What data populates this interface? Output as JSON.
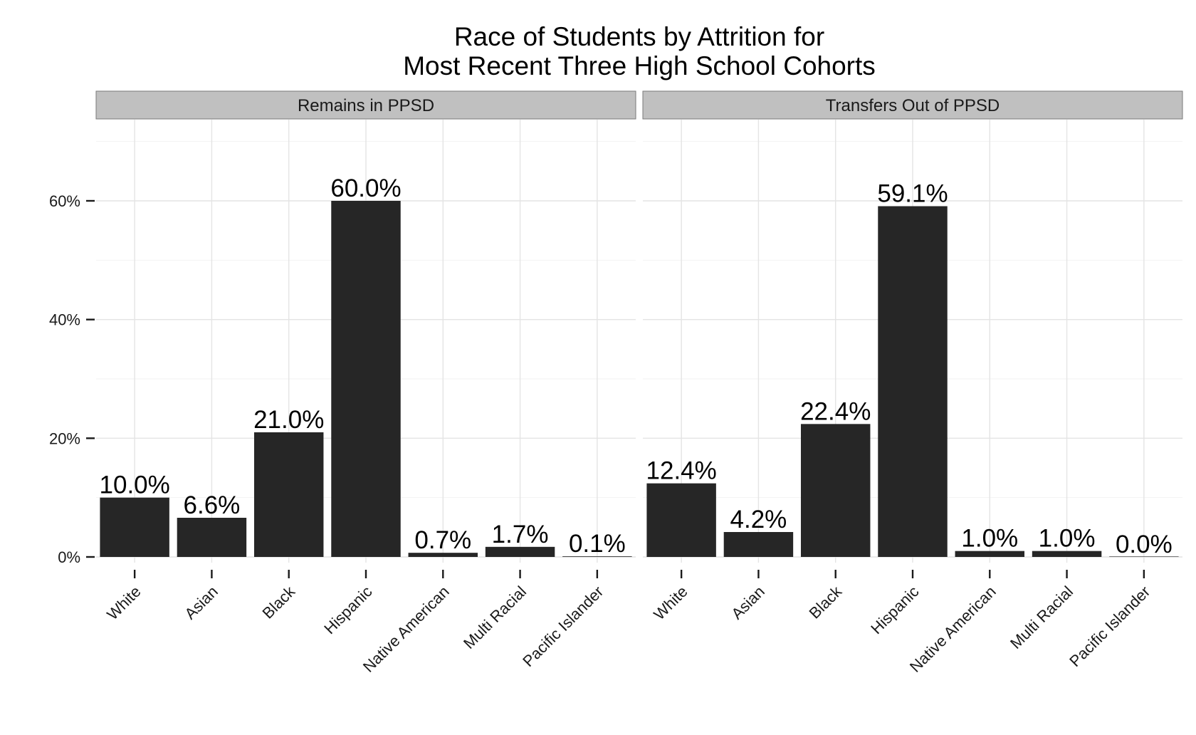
{
  "chart_data": {
    "type": "bar",
    "title_lines": [
      "Race of Students by Attrition for",
      "Most Recent Three High School Cohorts"
    ],
    "xlabel": "",
    "ylabel": "",
    "ylim": [
      0,
      0.72
    ],
    "y_ticks": [
      0,
      0.2,
      0.4,
      0.6
    ],
    "y_tick_labels": [
      "0%",
      "20%",
      "40%",
      "60%"
    ],
    "grid": true,
    "categories": [
      "White",
      "Asian",
      "Black",
      "Hispanic",
      "Native American",
      "Multi Racial",
      "Pacific Islander"
    ],
    "bar_color": "#262626",
    "strip_color": "#c0c0c0",
    "panels": [
      {
        "name": "Remains in PPSD",
        "values": [
          0.1,
          0.066,
          0.21,
          0.6,
          0.007,
          0.017,
          0.001
        ],
        "labels": [
          "10.0%",
          "6.6%",
          "21.0%",
          "60.0%",
          "0.7%",
          "1.7%",
          "0.1%"
        ]
      },
      {
        "name": "Transfers Out of PPSD",
        "values": [
          0.124,
          0.042,
          0.224,
          0.591,
          0.01,
          0.01,
          0.0
        ],
        "labels": [
          "12.4%",
          "4.2%",
          "22.4%",
          "59.1%",
          "1.0%",
          "1.0%",
          "0.0%"
        ]
      }
    ]
  }
}
